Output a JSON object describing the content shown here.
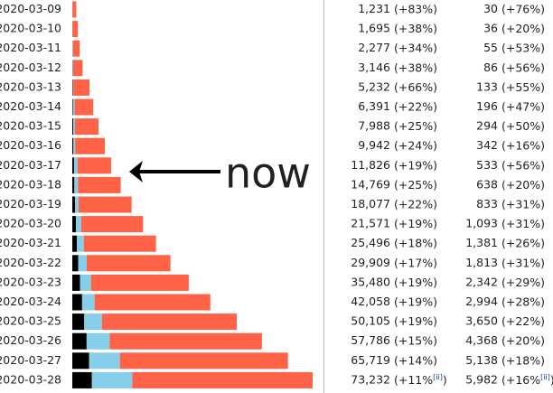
{
  "annotation": "now",
  "rows": [
    {
      "date": "2020-03-09",
      "deaths": 30,
      "recovered": 32,
      "active": 1169,
      "cases": {
        "value": 1231,
        "label": "1,231"
      },
      "cases_change": "(+83%)",
      "deaths_label": "30",
      "deaths_change": "(+76%)"
    },
    {
      "date": "2020-03-10",
      "deaths": 36,
      "recovered": 32,
      "active": 1627,
      "cases": {
        "value": 1695,
        "label": "1,695"
      },
      "cases_change": "(+38%)",
      "deaths_label": "36",
      "deaths_change": "(+20%)"
    },
    {
      "date": "2020-03-11",
      "deaths": 55,
      "recovered": 183,
      "active": 2039,
      "cases": {
        "value": 2277,
        "label": "2,277"
      },
      "cases_change": "(+34%)",
      "deaths_label": "55",
      "deaths_change": "(+53%)"
    },
    {
      "date": "2020-03-12",
      "deaths": 86,
      "recovered": 189,
      "active": 2871,
      "cases": {
        "value": 3146,
        "label": "3,146"
      },
      "cases_change": "(+38%)",
      "deaths_label": "86",
      "deaths_change": "(+56%)"
    },
    {
      "date": "2020-03-13",
      "deaths": 133,
      "recovered": 193,
      "active": 4906,
      "cases": {
        "value": 5232,
        "label": "5,232"
      },
      "cases_change": "(+66%)",
      "deaths_label": "133",
      "deaths_change": "(+55%)"
    },
    {
      "date": "2020-03-14",
      "deaths": 196,
      "recovered": 517,
      "active": 5678,
      "cases": {
        "value": 6391,
        "label": "6,391"
      },
      "cases_change": "(+22%)",
      "deaths_label": "196",
      "deaths_change": "(+47%)"
    },
    {
      "date": "2020-03-15",
      "deaths": 294,
      "recovered": 517,
      "active": 7177,
      "cases": {
        "value": 7988,
        "label": "7,988"
      },
      "cases_change": "(+25%)",
      "deaths_label": "294",
      "deaths_change": "(+50%)"
    },
    {
      "date": "2020-03-16",
      "deaths": 342,
      "recovered": 530,
      "active": 9070,
      "cases": {
        "value": 9942,
        "label": "9,942"
      },
      "cases_change": "(+24%)",
      "deaths_label": "342",
      "deaths_change": "(+16%)"
    },
    {
      "date": "2020-03-17",
      "deaths": 533,
      "recovered": 1028,
      "active": 10265,
      "cases": {
        "value": 11826,
        "label": "11,826"
      },
      "cases_change": "(+19%)",
      "deaths_label": "533",
      "deaths_change": "(+56%)"
    },
    {
      "date": "2020-03-18",
      "deaths": 638,
      "recovered": 1081,
      "active": 13050,
      "cases": {
        "value": 14769,
        "label": "14,769"
      },
      "cases_change": "(+25%)",
      "deaths_label": "638",
      "deaths_change": "(+20%)"
    },
    {
      "date": "2020-03-19",
      "deaths": 833,
      "recovered": 1107,
      "active": 16137,
      "cases": {
        "value": 18077,
        "label": "18,077"
      },
      "cases_change": "(+22%)",
      "deaths_label": "833",
      "deaths_change": "(+31%)"
    },
    {
      "date": "2020-03-20",
      "deaths": 1093,
      "recovered": 1588,
      "active": 18890,
      "cases": {
        "value": 21571,
        "label": "21,571"
      },
      "cases_change": "(+19%)",
      "deaths_label": "1,093",
      "deaths_change": "(+31%)"
    },
    {
      "date": "2020-03-21",
      "deaths": 1381,
      "recovered": 2125,
      "active": 21990,
      "cases": {
        "value": 25496,
        "label": "25,496"
      },
      "cases_change": "(+18%)",
      "deaths_label": "1,381",
      "deaths_change": "(+26%)"
    },
    {
      "date": "2020-03-22",
      "deaths": 1813,
      "recovered": 2575,
      "active": 25521,
      "cases": {
        "value": 29909,
        "label": "29,909"
      },
      "cases_change": "(+17%)",
      "deaths_label": "1,813",
      "deaths_change": "(+31%)"
    },
    {
      "date": "2020-03-23",
      "deaths": 2342,
      "recovered": 3355,
      "active": 29783,
      "cases": {
        "value": 35480,
        "label": "35,480"
      },
      "cases_change": "(+19%)",
      "deaths_label": "2,342",
      "deaths_change": "(+29%)"
    },
    {
      "date": "2020-03-24",
      "deaths": 2994,
      "recovered": 3794,
      "active": 35270,
      "cases": {
        "value": 42058,
        "label": "42,058"
      },
      "cases_change": "(+19%)",
      "deaths_label": "2,994",
      "deaths_change": "(+28%)"
    },
    {
      "date": "2020-03-25",
      "deaths": 3650,
      "recovered": 5367,
      "active": 41088,
      "cases": {
        "value": 50105,
        "label": "50,105"
      },
      "cases_change": "(+19%)",
      "deaths_label": "3,650",
      "deaths_change": "(+22%)"
    },
    {
      "date": "2020-03-26",
      "deaths": 4368,
      "recovered": 7015,
      "active": 46403,
      "cases": {
        "value": 57786,
        "label": "57,786"
      },
      "cases_change": "(+15%)",
      "deaths_label": "4,368",
      "deaths_change": "(+20%)"
    },
    {
      "date": "2020-03-27",
      "deaths": 5138,
      "recovered": 9357,
      "active": 51224,
      "cases": {
        "value": 65719,
        "label": "65,719"
      },
      "cases_change": "(+14%)",
      "deaths_label": "5,138",
      "deaths_change": "(+18%)"
    },
    {
      "date": "2020-03-28",
      "deaths": 5982,
      "recovered": 12285,
      "active": 54965,
      "cases": {
        "value": 73232,
        "label": "73,232"
      },
      "cases_change": "(+11%",
      "cases_note": "[ii]",
      "cases_close": ")",
      "deaths_label": "5,982",
      "deaths_change": "(+16%",
      "deaths_note": "[ii]",
      "deaths_close": ")"
    }
  ]
}
